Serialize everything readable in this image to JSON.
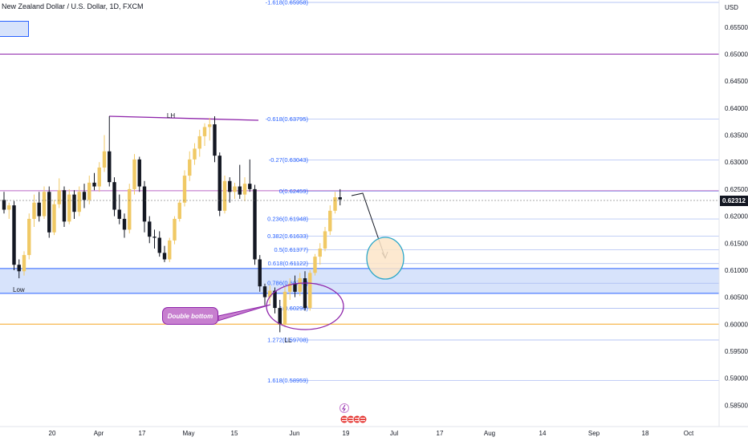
{
  "header": {
    "title": "New Zealand Dollar / U.S. Dollar, 1D, FXCM",
    "currency": "USD"
  },
  "current_price": "0.62312",
  "annotations": {
    "lh": "LH",
    "low": "Low",
    "ll": "LL",
    "callout": "Double bottom"
  },
  "fib_levels": [
    {
      "label": "-1.618(0.65958)",
      "price": 0.65958
    },
    {
      "label": "-0.618(0.63795)",
      "price": 0.63795
    },
    {
      "label": "-0.27(0.63043)",
      "price": 0.63043
    },
    {
      "label": "0(0.62459)",
      "price": 0.62459
    },
    {
      "label": "0.236(0.61948)",
      "price": 0.61948
    },
    {
      "label": "0.382(0.61633)",
      "price": 0.61633
    },
    {
      "label": "0.5(0.61377)",
      "price": 0.61377
    },
    {
      "label": "0.618(0.61122)",
      "price": 0.61122
    },
    {
      "label": "0.786(0.60759)",
      "price": 0.60759
    },
    {
      "label": "1(0.60296)",
      "price": 0.60296
    },
    {
      "label": "1.272(0.59708)",
      "price": 0.59708
    },
    {
      "label": "1.618(0.58959)",
      "price": 0.58959
    }
  ],
  "colors": {
    "bull": "#f0c965",
    "bear": "#131722",
    "fib": "#2962ff",
    "purple": "#8e24aa",
    "support_line": "#f5a623",
    "zone_fill": "#d7e3fb",
    "circle_fill": "#fde5c8",
    "circle_stroke": "#2aa6c9"
  },
  "chart_data": {
    "type": "candlestick",
    "y_axis_ticks": [
      "0.65500",
      "0.65000",
      "0.64500",
      "0.64000",
      "0.63500",
      "0.63000",
      "0.62500",
      "0.62000",
      "0.61500",
      "0.61000",
      "0.60500",
      "0.60000",
      "0.59500",
      "0.59000",
      "0.58500"
    ],
    "x_axis_ticks": [
      "20",
      "Apr",
      "17",
      "May",
      "15",
      "Jun",
      "19",
      "Jul",
      "17",
      "Aug",
      "14",
      "Sep",
      "18",
      "Oct"
    ],
    "ylim": [
      0.5815,
      0.6597
    ],
    "horizontal_lines": [
      0.65,
      0.6247,
      0.6
    ],
    "zones": [
      {
        "from": 0.6057,
        "to": 0.6103
      }
    ],
    "candles": [
      {
        "o": 0.623,
        "h": 0.6245,
        "l": 0.6205,
        "c": 0.6212
      },
      {
        "o": 0.6212,
        "h": 0.6225,
        "l": 0.6195,
        "c": 0.622
      },
      {
        "o": 0.622,
        "h": 0.6228,
        "l": 0.61,
        "c": 0.611
      },
      {
        "o": 0.611,
        "h": 0.612,
        "l": 0.6085,
        "c": 0.6098
      },
      {
        "o": 0.6098,
        "h": 0.6135,
        "l": 0.609,
        "c": 0.6128
      },
      {
        "o": 0.6128,
        "h": 0.6205,
        "l": 0.612,
        "c": 0.6195
      },
      {
        "o": 0.6195,
        "h": 0.624,
        "l": 0.618,
        "c": 0.6225
      },
      {
        "o": 0.6225,
        "h": 0.6245,
        "l": 0.619,
        "c": 0.62
      },
      {
        "o": 0.62,
        "h": 0.6255,
        "l": 0.6195,
        "c": 0.6245
      },
      {
        "o": 0.6245,
        "h": 0.6255,
        "l": 0.616,
        "c": 0.617
      },
      {
        "o": 0.617,
        "h": 0.623,
        "l": 0.6165,
        "c": 0.6222
      },
      {
        "o": 0.6222,
        "h": 0.627,
        "l": 0.6215,
        "c": 0.6248
      },
      {
        "o": 0.6248,
        "h": 0.6255,
        "l": 0.618,
        "c": 0.619
      },
      {
        "o": 0.619,
        "h": 0.625,
        "l": 0.6185,
        "c": 0.624
      },
      {
        "o": 0.624,
        "h": 0.6248,
        "l": 0.6195,
        "c": 0.6208
      },
      {
        "o": 0.6208,
        "h": 0.6255,
        "l": 0.62,
        "c": 0.6245
      },
      {
        "o": 0.6245,
        "h": 0.626,
        "l": 0.6215,
        "c": 0.623
      },
      {
        "o": 0.623,
        "h": 0.6275,
        "l": 0.6222,
        "c": 0.6262
      },
      {
        "o": 0.6262,
        "h": 0.628,
        "l": 0.6248,
        "c": 0.6255
      },
      {
        "o": 0.6255,
        "h": 0.63,
        "l": 0.6245,
        "c": 0.629
      },
      {
        "o": 0.629,
        "h": 0.635,
        "l": 0.6282,
        "c": 0.632
      },
      {
        "o": 0.632,
        "h": 0.6385,
        "l": 0.6255,
        "c": 0.6263
      },
      {
        "o": 0.6263,
        "h": 0.6272,
        "l": 0.62,
        "c": 0.6212
      },
      {
        "o": 0.6212,
        "h": 0.624,
        "l": 0.6185,
        "c": 0.6195
      },
      {
        "o": 0.6195,
        "h": 0.6205,
        "l": 0.616,
        "c": 0.6175
      },
      {
        "o": 0.6175,
        "h": 0.626,
        "l": 0.6168,
        "c": 0.625
      },
      {
        "o": 0.625,
        "h": 0.6315,
        "l": 0.624,
        "c": 0.6305
      },
      {
        "o": 0.6305,
        "h": 0.631,
        "l": 0.6245,
        "c": 0.6255
      },
      {
        "o": 0.6255,
        "h": 0.6265,
        "l": 0.617,
        "c": 0.619
      },
      {
        "o": 0.619,
        "h": 0.62,
        "l": 0.615,
        "c": 0.6162
      },
      {
        "o": 0.6162,
        "h": 0.6175,
        "l": 0.614,
        "c": 0.616
      },
      {
        "o": 0.616,
        "h": 0.6172,
        "l": 0.6125,
        "c": 0.6132
      },
      {
        "o": 0.6132,
        "h": 0.6145,
        "l": 0.6115,
        "c": 0.612
      },
      {
        "o": 0.612,
        "h": 0.616,
        "l": 0.6115,
        "c": 0.6155
      },
      {
        "o": 0.6155,
        "h": 0.62,
        "l": 0.6148,
        "c": 0.6195
      },
      {
        "o": 0.6195,
        "h": 0.623,
        "l": 0.619,
        "c": 0.6225
      },
      {
        "o": 0.6225,
        "h": 0.6285,
        "l": 0.6218,
        "c": 0.6275
      },
      {
        "o": 0.6275,
        "h": 0.632,
        "l": 0.6265,
        "c": 0.6305
      },
      {
        "o": 0.6305,
        "h": 0.6335,
        "l": 0.6295,
        "c": 0.6325
      },
      {
        "o": 0.6325,
        "h": 0.636,
        "l": 0.631,
        "c": 0.6348
      },
      {
        "o": 0.6348,
        "h": 0.6372,
        "l": 0.633,
        "c": 0.6365
      },
      {
        "o": 0.6365,
        "h": 0.6382,
        "l": 0.634,
        "c": 0.637
      },
      {
        "o": 0.637,
        "h": 0.6385,
        "l": 0.63,
        "c": 0.6312
      },
      {
        "o": 0.6312,
        "h": 0.6318,
        "l": 0.62,
        "c": 0.621
      },
      {
        "o": 0.621,
        "h": 0.6275,
        "l": 0.6205,
        "c": 0.6265
      },
      {
        "o": 0.6265,
        "h": 0.6272,
        "l": 0.6225,
        "c": 0.6245
      },
      {
        "o": 0.6245,
        "h": 0.6262,
        "l": 0.6232,
        "c": 0.6255
      },
      {
        "o": 0.6255,
        "h": 0.6295,
        "l": 0.6232,
        "c": 0.624
      },
      {
        "o": 0.624,
        "h": 0.6272,
        "l": 0.6228,
        "c": 0.626
      },
      {
        "o": 0.626,
        "h": 0.6305,
        "l": 0.6245,
        "c": 0.625
      },
      {
        "o": 0.625,
        "h": 0.6258,
        "l": 0.611,
        "c": 0.612
      },
      {
        "o": 0.612,
        "h": 0.6128,
        "l": 0.606,
        "c": 0.607
      },
      {
        "o": 0.607,
        "h": 0.6075,
        "l": 0.6035,
        "c": 0.605
      },
      {
        "o": 0.605,
        "h": 0.6072,
        "l": 0.6038,
        "c": 0.6062
      },
      {
        "o": 0.6062,
        "h": 0.6068,
        "l": 0.602,
        "c": 0.603
      },
      {
        "o": 0.603,
        "h": 0.6045,
        "l": 0.5985,
        "c": 0.6
      },
      {
        "o": 0.6,
        "h": 0.607,
        "l": 0.5995,
        "c": 0.606
      },
      {
        "o": 0.606,
        "h": 0.6085,
        "l": 0.6045,
        "c": 0.6075
      },
      {
        "o": 0.6075,
        "h": 0.609,
        "l": 0.605,
        "c": 0.606
      },
      {
        "o": 0.606,
        "h": 0.6095,
        "l": 0.6052,
        "c": 0.6085
      },
      {
        "o": 0.6085,
        "h": 0.6098,
        "l": 0.6025,
        "c": 0.603
      },
      {
        "o": 0.603,
        "h": 0.61,
        "l": 0.6025,
        "c": 0.6095
      },
      {
        "o": 0.6095,
        "h": 0.613,
        "l": 0.609,
        "c": 0.6125
      },
      {
        "o": 0.6125,
        "h": 0.615,
        "l": 0.611,
        "c": 0.614
      },
      {
        "o": 0.614,
        "h": 0.618,
        "l": 0.6135,
        "c": 0.6172
      },
      {
        "o": 0.6172,
        "h": 0.622,
        "l": 0.6165,
        "c": 0.621
      },
      {
        "o": 0.621,
        "h": 0.6245,
        "l": 0.6205,
        "c": 0.6235
      },
      {
        "o": 0.6235,
        "h": 0.625,
        "l": 0.622,
        "c": 0.6231
      }
    ]
  }
}
